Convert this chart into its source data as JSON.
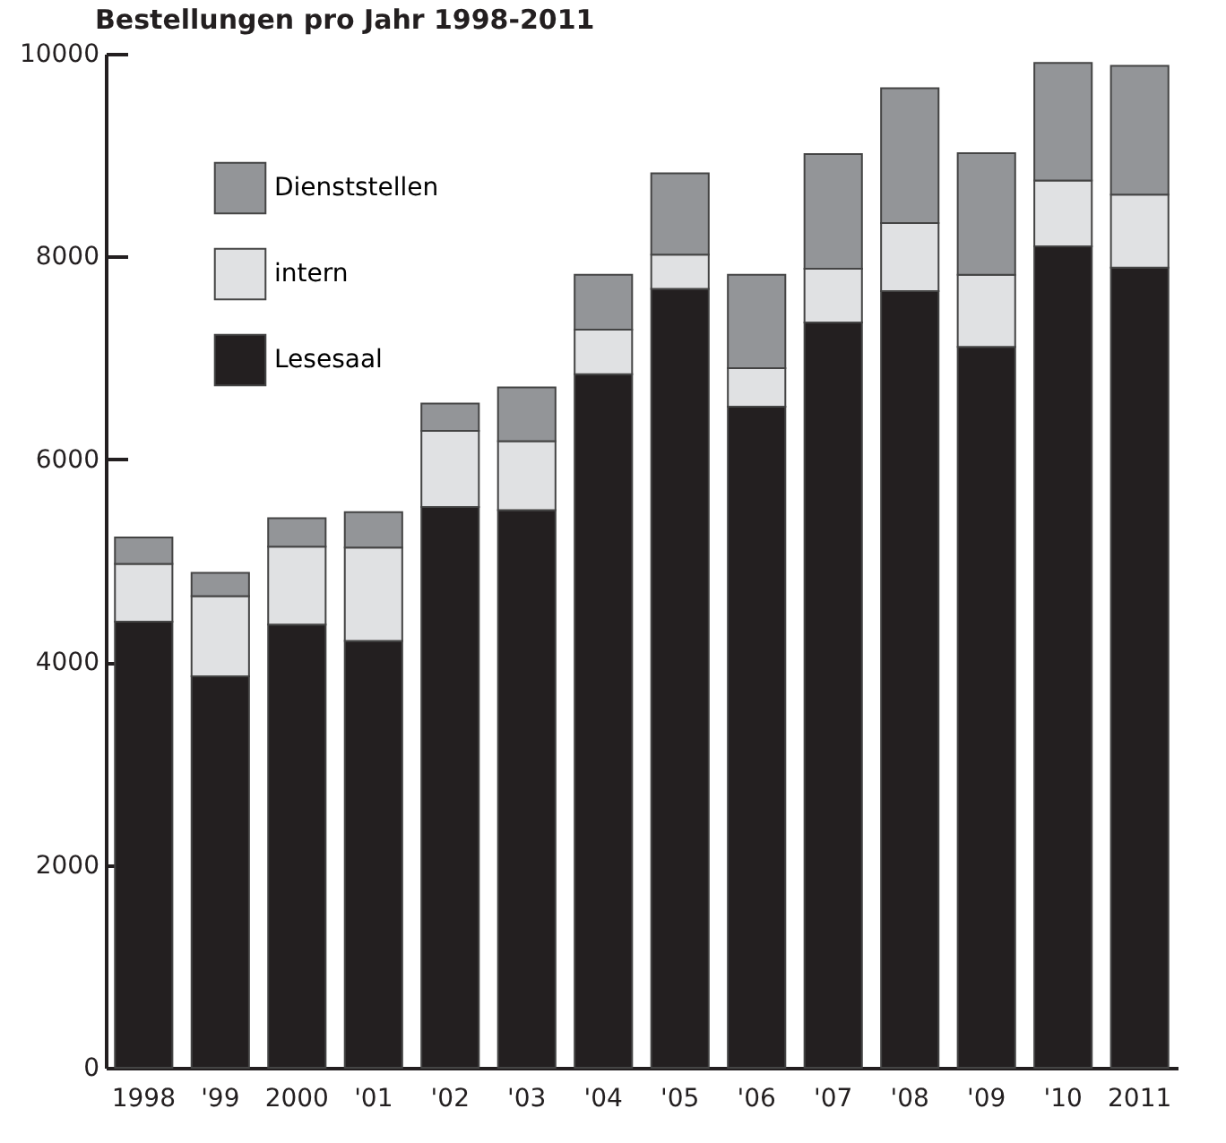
{
  "chart_data": {
    "type": "bar",
    "title": "Bestellungen pro Jahr 1998-2011",
    "stacked": true,
    "categories": [
      "1998",
      "'99",
      "2000",
      "'01",
      "'02",
      "'03",
      "'04",
      "'05",
      "'06",
      "'07",
      "'08",
      "'09",
      "'10",
      "2011"
    ],
    "series": [
      {
        "name": "Lesesaal",
        "color": "#231f20",
        "values": [
          4400,
          3860,
          4370,
          4210,
          5530,
          5500,
          6840,
          7680,
          6520,
          7350,
          7660,
          7110,
          8100,
          7890
        ]
      },
      {
        "name": "intern",
        "color": "#e0e1e3",
        "values": [
          570,
          790,
          770,
          920,
          750,
          680,
          440,
          340,
          380,
          530,
          670,
          710,
          650,
          720
        ]
      },
      {
        "name": "Dienststellen",
        "color": "#939598",
        "values": [
          260,
          230,
          280,
          350,
          270,
          530,
          540,
          800,
          920,
          1130,
          1330,
          1200,
          1160,
          1270
        ]
      }
    ],
    "ylim": [
      0,
      10000
    ],
    "yticks": [
      0,
      2000,
      4000,
      6000,
      8000,
      10000
    ],
    "grid": false,
    "legend": "top left"
  }
}
